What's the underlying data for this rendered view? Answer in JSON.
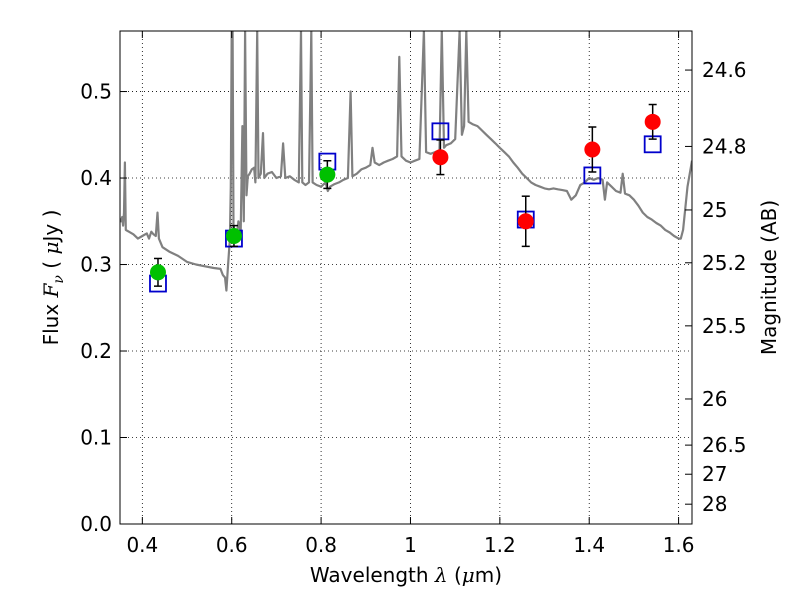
{
  "chart_data": {
    "type": "scatter",
    "xlabel": {
      "prefix": "Wavelength  ",
      "symbol": "λ",
      "unit_open": " (",
      "mu": "μ",
      "unit_close": "m)"
    },
    "ylabel": {
      "prefix": "Flux  ",
      "symbol": "F",
      "sub": "ν",
      "mid": "  (  ",
      "mu": "μ",
      "unit_close": "Jy  )"
    },
    "y2label": "Magnitude (AB)",
    "xlim": [
      0.35,
      1.63
    ],
    "ylim": [
      0.0,
      0.57
    ],
    "grid": true,
    "x_ticks": [
      {
        "v": 0.4,
        "label": "0.4"
      },
      {
        "v": 0.6,
        "label": "0.6"
      },
      {
        "v": 0.8,
        "label": "0.8"
      },
      {
        "v": 1.0,
        "label": "1"
      },
      {
        "v": 1.2,
        "label": "1.2"
      },
      {
        "v": 1.4,
        "label": "1.4"
      },
      {
        "v": 1.6,
        "label": "1.6"
      }
    ],
    "y_ticks": [
      {
        "v": 0.0,
        "label": "0.0"
      },
      {
        "v": 0.1,
        "label": "0.1"
      },
      {
        "v": 0.2,
        "label": "0.2"
      },
      {
        "v": 0.3,
        "label": "0.3"
      },
      {
        "v": 0.4,
        "label": "0.4"
      },
      {
        "v": 0.5,
        "label": "0.5"
      }
    ],
    "y2_ticks": [
      {
        "mag": 24.6,
        "label": "24.6"
      },
      {
        "mag": 24.8,
        "label": "24.8"
      },
      {
        "mag": 25,
        "label": "25"
      },
      {
        "mag": 25.2,
        "label": "25.2"
      },
      {
        "mag": 25.5,
        "label": "25.5"
      },
      {
        "mag": 26,
        "label": "26"
      },
      {
        "mag": 26.5,
        "label": "26.5"
      },
      {
        "mag": 27,
        "label": "27"
      },
      {
        "mag": 28,
        "label": "28"
      }
    ],
    "colors": {
      "model": "#808080",
      "green": "#00c000",
      "red": "#ff0000",
      "square": "#0000cc",
      "error": "#000000",
      "grid": "#000000"
    },
    "model_spectrum": [
      [
        0.35,
        0.353
      ],
      [
        0.352,
        0.35
      ],
      [
        0.355,
        0.355
      ],
      [
        0.357,
        0.345
      ],
      [
        0.359,
        0.36
      ],
      [
        0.361,
        0.418
      ],
      [
        0.363,
        0.34
      ],
      [
        0.37,
        0.338
      ],
      [
        0.38,
        0.335
      ],
      [
        0.39,
        0.33
      ],
      [
        0.4,
        0.333
      ],
      [
        0.41,
        0.336
      ],
      [
        0.415,
        0.33
      ],
      [
        0.42,
        0.338
      ],
      [
        0.425,
        0.335
      ],
      [
        0.43,
        0.333
      ],
      [
        0.434,
        0.36
      ],
      [
        0.437,
        0.33
      ],
      [
        0.445,
        0.32
      ],
      [
        0.46,
        0.315
      ],
      [
        0.48,
        0.31
      ],
      [
        0.5,
        0.303
      ],
      [
        0.52,
        0.3
      ],
      [
        0.54,
        0.298
      ],
      [
        0.56,
        0.296
      ],
      [
        0.575,
        0.295
      ],
      [
        0.58,
        0.288
      ],
      [
        0.585,
        0.285
      ],
      [
        0.588,
        0.27
      ],
      [
        0.592,
        0.3
      ],
      [
        0.596,
        0.33
      ],
      [
        0.598,
        0.39
      ],
      [
        0.6,
        0.57
      ],
      [
        0.602,
        0.57
      ],
      [
        0.604,
        0.34
      ],
      [
        0.607,
        0.332
      ],
      [
        0.612,
        0.336
      ],
      [
        0.615,
        0.35
      ],
      [
        0.62,
        0.338
      ],
      [
        0.624,
        0.46
      ],
      [
        0.627,
        0.35
      ],
      [
        0.63,
        0.57
      ],
      [
        0.633,
        0.38
      ],
      [
        0.636,
        0.402
      ],
      [
        0.64,
        0.405
      ],
      [
        0.645,
        0.41
      ],
      [
        0.65,
        0.412
      ],
      [
        0.653,
        0.395
      ],
      [
        0.657,
        0.57
      ],
      [
        0.66,
        0.4
      ],
      [
        0.665,
        0.405
      ],
      [
        0.67,
        0.452
      ],
      [
        0.673,
        0.4
      ],
      [
        0.68,
        0.405
      ],
      [
        0.69,
        0.407
      ],
      [
        0.7,
        0.4
      ],
      [
        0.71,
        0.402
      ],
      [
        0.715,
        0.44
      ],
      [
        0.72,
        0.4
      ],
      [
        0.73,
        0.402
      ],
      [
        0.74,
        0.398
      ],
      [
        0.75,
        0.395
      ],
      [
        0.755,
        0.57
      ],
      [
        0.758,
        0.395
      ],
      [
        0.765,
        0.392
      ],
      [
        0.773,
        0.395
      ],
      [
        0.778,
        0.57
      ],
      [
        0.781,
        0.395
      ],
      [
        0.79,
        0.392
      ],
      [
        0.8,
        0.39
      ],
      [
        0.81,
        0.395
      ],
      [
        0.815,
        0.385
      ],
      [
        0.82,
        0.39
      ],
      [
        0.83,
        0.393
      ],
      [
        0.84,
        0.395
      ],
      [
        0.85,
        0.398
      ],
      [
        0.86,
        0.4
      ],
      [
        0.866,
        0.5
      ],
      [
        0.87,
        0.402
      ],
      [
        0.88,
        0.405
      ],
      [
        0.89,
        0.41
      ],
      [
        0.9,
        0.412
      ],
      [
        0.91,
        0.415
      ],
      [
        0.915,
        0.435
      ],
      [
        0.92,
        0.418
      ],
      [
        0.93,
        0.415
      ],
      [
        0.94,
        0.418
      ],
      [
        0.95,
        0.42
      ],
      [
        0.96,
        0.422
      ],
      [
        0.97,
        0.425
      ],
      [
        0.975,
        0.54
      ],
      [
        0.98,
        0.425
      ],
      [
        0.99,
        0.42
      ],
      [
        1.0,
        0.418
      ],
      [
        1.01,
        0.42
      ],
      [
        1.02,
        0.422
      ],
      [
        1.03,
        0.57
      ],
      [
        1.035,
        0.43
      ],
      [
        1.045,
        0.428
      ],
      [
        1.055,
        0.43
      ],
      [
        1.065,
        0.432
      ],
      [
        1.07,
        0.57
      ],
      [
        1.075,
        0.435
      ],
      [
        1.08,
        0.438
      ],
      [
        1.09,
        0.44
      ],
      [
        1.1,
        0.445
      ],
      [
        1.11,
        0.57
      ],
      [
        1.115,
        0.45
      ],
      [
        1.12,
        0.46
      ],
      [
        1.125,
        0.57
      ],
      [
        1.13,
        0.465
      ],
      [
        1.14,
        0.462
      ],
      [
        1.15,
        0.46
      ],
      [
        1.16,
        0.455
      ],
      [
        1.17,
        0.45
      ],
      [
        1.18,
        0.445
      ],
      [
        1.19,
        0.44
      ],
      [
        1.2,
        0.435
      ],
      [
        1.21,
        0.43
      ],
      [
        1.22,
        0.425
      ],
      [
        1.23,
        0.418
      ],
      [
        1.24,
        0.412
      ],
      [
        1.25,
        0.405
      ],
      [
        1.26,
        0.4
      ],
      [
        1.27,
        0.395
      ],
      [
        1.28,
        0.392
      ],
      [
        1.29,
        0.39
      ],
      [
        1.3,
        0.388
      ],
      [
        1.31,
        0.387
      ],
      [
        1.32,
        0.388
      ],
      [
        1.33,
        0.387
      ],
      [
        1.34,
        0.386
      ],
      [
        1.35,
        0.385
      ],
      [
        1.36,
        0.375
      ],
      [
        1.37,
        0.38
      ],
      [
        1.38,
        0.392
      ],
      [
        1.39,
        0.395
      ],
      [
        1.4,
        0.4
      ],
      [
        1.41,
        0.398
      ],
      [
        1.42,
        0.4
      ],
      [
        1.43,
        0.398
      ],
      [
        1.435,
        0.375
      ],
      [
        1.44,
        0.395
      ],
      [
        1.45,
        0.39
      ],
      [
        1.46,
        0.385
      ],
      [
        1.47,
        0.383
      ],
      [
        1.475,
        0.405
      ],
      [
        1.48,
        0.382
      ],
      [
        1.49,
        0.38
      ],
      [
        1.5,
        0.375
      ],
      [
        1.51,
        0.368
      ],
      [
        1.52,
        0.36
      ],
      [
        1.53,
        0.355
      ],
      [
        1.54,
        0.352
      ],
      [
        1.55,
        0.348
      ],
      [
        1.56,
        0.345
      ],
      [
        1.57,
        0.34
      ],
      [
        1.58,
        0.337
      ],
      [
        1.59,
        0.333
      ],
      [
        1.6,
        0.33
      ],
      [
        1.605,
        0.33
      ],
      [
        1.61,
        0.34
      ],
      [
        1.62,
        0.39
      ],
      [
        1.63,
        0.42
      ]
    ],
    "observed_green": [
      {
        "x": 0.435,
        "y": 0.291,
        "err": 0.016
      },
      {
        "x": 0.605,
        "y": 0.333,
        "err": 0.012
      },
      {
        "x": 0.814,
        "y": 0.404,
        "err": 0.016
      }
    ],
    "observed_red": [
      {
        "x": 1.067,
        "y": 0.424,
        "err": 0.02
      },
      {
        "x": 1.258,
        "y": 0.35,
        "err": 0.029
      },
      {
        "x": 1.407,
        "y": 0.433,
        "err": 0.026
      },
      {
        "x": 1.542,
        "y": 0.465,
        "err": 0.02
      }
    ],
    "model_squares": [
      {
        "x": 0.435,
        "y": 0.278
      },
      {
        "x": 0.605,
        "y": 0.33
      },
      {
        "x": 0.814,
        "y": 0.419
      },
      {
        "x": 1.067,
        "y": 0.454
      },
      {
        "x": 1.258,
        "y": 0.352
      },
      {
        "x": 1.407,
        "y": 0.403
      },
      {
        "x": 1.542,
        "y": 0.439
      }
    ]
  }
}
